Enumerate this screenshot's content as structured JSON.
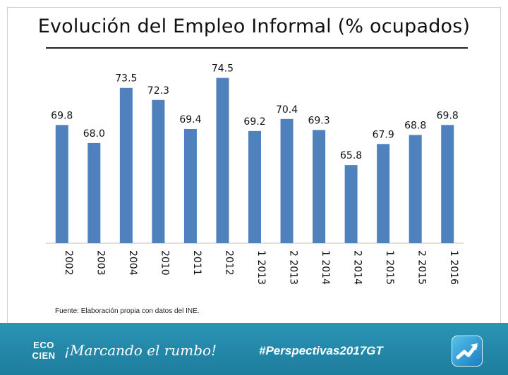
{
  "title": "Evolución del Empleo Informal (% ocupados)",
  "source": "Fuente: Elaboración propia con datos del INE.",
  "footer": {
    "logo_line1": "ECO",
    "logo_line2": "CIEN",
    "tagline": "¡Marcando el rumbo!",
    "hashtag": "#Perspectivas2017GT"
  },
  "colors": {
    "bar": "#4f81bd",
    "footer": "#2387a8"
  },
  "chart_data": {
    "type": "bar",
    "title": "Evolución del Empleo Informal (% ocupados)",
    "categories": [
      "2002",
      "2003",
      "2004",
      "2010",
      "2011",
      "2012",
      "1 2013",
      "2 2013",
      "1 2014",
      "2 2014",
      "1 2015",
      "2 2015",
      "1 2016"
    ],
    "values": [
      69.8,
      68.0,
      73.5,
      72.3,
      69.4,
      74.5,
      69.2,
      70.4,
      69.3,
      65.8,
      67.9,
      68.8,
      69.8
    ],
    "value_labels": [
      "69.8",
      "68.0",
      "73.5",
      "72.3",
      "69.4",
      "74.5",
      "69.2",
      "70.4",
      "69.3",
      "65.8",
      "67.9",
      "68.8",
      "69.8"
    ],
    "xlabel": "",
    "ylabel": "",
    "ylim": [
      58,
      77
    ],
    "grid": false,
    "legend": "none"
  }
}
